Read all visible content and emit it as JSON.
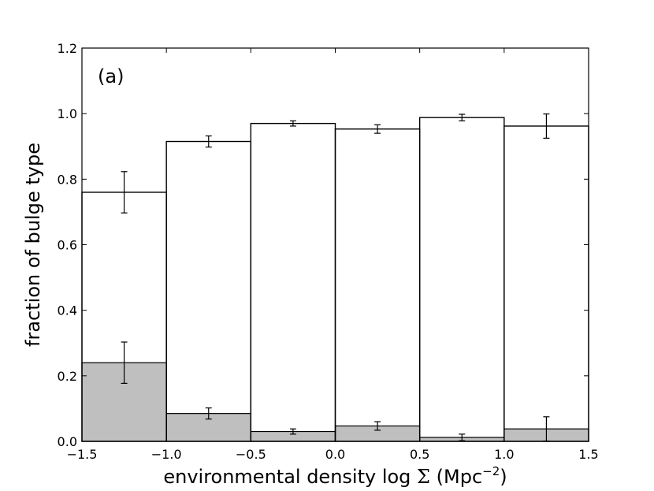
{
  "chart_data": {
    "type": "bar",
    "panel_label": "(a)",
    "xlabel_prefix": "environmental density log ",
    "xlabel_symbol": "Σ",
    "xlabel_unit": " (Mpc",
    "xlabel_exp": "−2",
    "xlabel_suffix": ")",
    "ylabel": "fraction of bulge type",
    "xlim": [
      -1.5,
      1.5
    ],
    "ylim": [
      0.0,
      1.2
    ],
    "xticks": [
      -1.5,
      -1.0,
      -0.5,
      0.0,
      0.5,
      1.0,
      1.5
    ],
    "xtick_labels": [
      "−1.5",
      "−1.0",
      "−0.5",
      "0.0",
      "0.5",
      "1.0",
      "1.5"
    ],
    "yticks": [
      0.0,
      0.2,
      0.4,
      0.6,
      0.8,
      1.0,
      1.2
    ],
    "ytick_labels": [
      "0.0",
      "0.2",
      "0.4",
      "0.6",
      "0.8",
      "1.0",
      "1.2"
    ],
    "bin_edges": [
      -1.5,
      -1.0,
      -0.5,
      0.0,
      0.5,
      1.0,
      1.5
    ],
    "grid": false,
    "series": [
      {
        "style": "outline",
        "color": "#000000",
        "values": [
          0.76,
          0.915,
          0.97,
          0.953,
          0.988,
          0.962
        ],
        "errors": [
          0.063,
          0.017,
          0.008,
          0.013,
          0.01,
          0.037
        ]
      },
      {
        "style": "filled",
        "color": "#bfbfbf",
        "values": [
          0.24,
          0.085,
          0.03,
          0.047,
          0.012,
          0.038
        ],
        "errors": [
          0.063,
          0.017,
          0.008,
          0.013,
          0.01,
          0.037
        ]
      }
    ]
  }
}
